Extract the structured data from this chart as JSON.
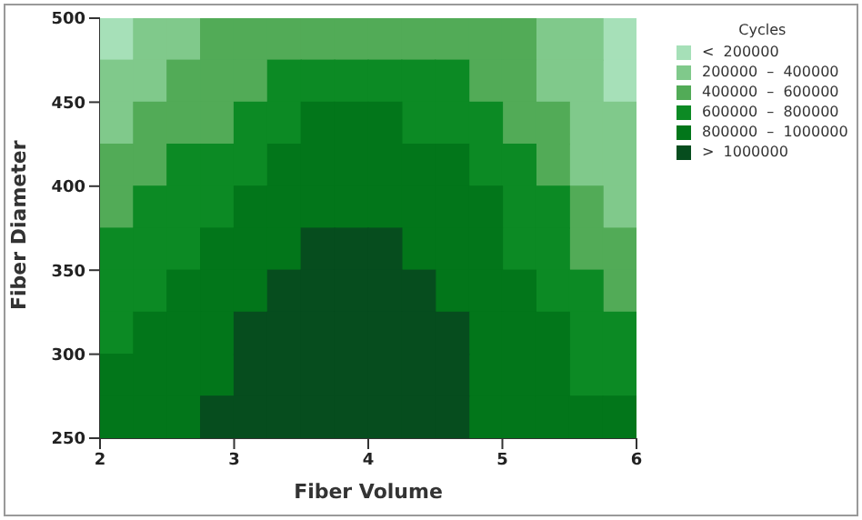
{
  "chart_data": {
    "type": "scatter",
    "xlabel": "Fiber Volume",
    "ylabel": "Fiber Diameter",
    "legend_title": "Cycles",
    "legend": "right",
    "marker": "square",
    "xlim": [
      2,
      6
    ],
    "xticks": [
      2,
      3,
      4,
      5,
      6
    ],
    "ylim": [
      250,
      500
    ],
    "yticks": [
      250,
      300,
      350,
      400,
      450,
      500
    ],
    "series": [
      {
        "name": "<  200000",
        "color": "#a6e0b8",
        "x": [
          2.125,
          5.875,
          5.875
        ],
        "values": [
          487.5,
          487.5,
          462.5
        ]
      },
      {
        "name": "200000  –  400000",
        "color": "#80c98b",
        "x": [
          2.375,
          2.625,
          5.375,
          5.625,
          2.125,
          2.375,
          5.375,
          5.625,
          2.125,
          5.625,
          5.875,
          5.625,
          5.875,
          5.875
        ],
        "values": [
          487.5,
          487.5,
          487.5,
          487.5,
          462.5,
          462.5,
          462.5,
          462.5,
          437.5,
          437.5,
          437.5,
          412.5,
          412.5,
          387.5
        ]
      },
      {
        "name": "400000  –  600000",
        "color": "#52ab57",
        "x": [
          2.875,
          3.125,
          3.375,
          3.625,
          3.875,
          4.125,
          4.375,
          4.625,
          4.875,
          5.125,
          2.625,
          2.875,
          3.125,
          4.875,
          5.125,
          2.375,
          2.625,
          2.875,
          5.125,
          5.375,
          2.125,
          2.375,
          5.375,
          2.125,
          5.625,
          5.625,
          5.875,
          5.875
        ],
        "values": [
          487.5,
          487.5,
          487.5,
          487.5,
          487.5,
          487.5,
          487.5,
          487.5,
          487.5,
          487.5,
          462.5,
          462.5,
          462.5,
          462.5,
          462.5,
          437.5,
          437.5,
          437.5,
          437.5,
          437.5,
          412.5,
          412.5,
          412.5,
          387.5,
          387.5,
          362.5,
          362.5,
          337.5
        ]
      },
      {
        "name": "600000  –  800000",
        "color": "#0c8a24",
        "x": [
          3.375,
          3.625,
          3.875,
          4.125,
          4.375,
          4.625,
          3.125,
          3.375,
          4.375,
          4.625,
          4.875,
          2.625,
          2.875,
          3.125,
          4.875,
          5.125,
          2.375,
          2.625,
          2.875,
          5.125,
          5.375,
          2.125,
          2.375,
          2.625,
          5.125,
          5.375,
          2.125,
          2.375,
          5.375,
          5.625,
          2.125,
          5.625,
          5.875,
          5.625,
          5.875
        ],
        "values": [
          462.5,
          462.5,
          462.5,
          462.5,
          462.5,
          462.5,
          437.5,
          437.5,
          437.5,
          437.5,
          437.5,
          412.5,
          412.5,
          412.5,
          412.5,
          412.5,
          387.5,
          387.5,
          387.5,
          387.5,
          387.5,
          362.5,
          362.5,
          362.5,
          362.5,
          362.5,
          337.5,
          337.5,
          337.5,
          337.5,
          312.5,
          312.5,
          312.5,
          287.5,
          287.5
        ]
      },
      {
        "name": "800000  –  1000000",
        "color": "#02761a",
        "x": [
          3.625,
          3.875,
          4.125,
          3.375,
          3.625,
          3.875,
          4.125,
          4.375,
          4.625,
          3.125,
          3.375,
          3.625,
          3.875,
          4.125,
          4.375,
          4.625,
          4.875,
          2.875,
          3.125,
          3.375,
          4.375,
          4.625,
          4.875,
          2.625,
          2.875,
          3.125,
          4.625,
          4.875,
          5.125,
          2.375,
          2.625,
          2.875,
          4.875,
          5.125,
          5.375,
          2.125,
          2.375,
          2.625,
          2.875,
          4.875,
          5.125,
          5.375,
          2.125,
          2.375,
          2.625,
          4.875,
          5.125,
          5.375,
          5.625,
          5.875
        ],
        "values": [
          437.5,
          437.5,
          437.5,
          412.5,
          412.5,
          412.5,
          412.5,
          412.5,
          412.5,
          387.5,
          387.5,
          387.5,
          387.5,
          387.5,
          387.5,
          387.5,
          387.5,
          362.5,
          362.5,
          362.5,
          362.5,
          362.5,
          362.5,
          337.5,
          337.5,
          337.5,
          337.5,
          337.5,
          337.5,
          312.5,
          312.5,
          312.5,
          312.5,
          312.5,
          312.5,
          287.5,
          287.5,
          287.5,
          287.5,
          287.5,
          287.5,
          287.5,
          262.5,
          262.5,
          262.5,
          262.5,
          262.5,
          262.5,
          262.5,
          262.5
        ]
      },
      {
        "name": ">  1000000",
        "color": "#064d1e",
        "x": [
          3.625,
          3.875,
          4.125,
          3.375,
          3.625,
          3.875,
          4.125,
          4.375,
          3.125,
          3.375,
          3.625,
          3.875,
          4.125,
          4.375,
          4.625,
          3.125,
          3.375,
          3.625,
          3.875,
          4.125,
          4.375,
          4.625,
          2.875,
          3.125,
          3.375,
          3.625,
          3.875,
          4.125,
          4.375,
          4.625
        ],
        "values": [
          362.5,
          362.5,
          362.5,
          337.5,
          337.5,
          337.5,
          337.5,
          337.5,
          312.5,
          312.5,
          312.5,
          312.5,
          312.5,
          312.5,
          312.5,
          287.5,
          287.5,
          287.5,
          287.5,
          287.5,
          287.5,
          287.5,
          262.5,
          262.5,
          262.5,
          262.5,
          262.5,
          262.5,
          262.5,
          262.5
        ]
      }
    ]
  }
}
